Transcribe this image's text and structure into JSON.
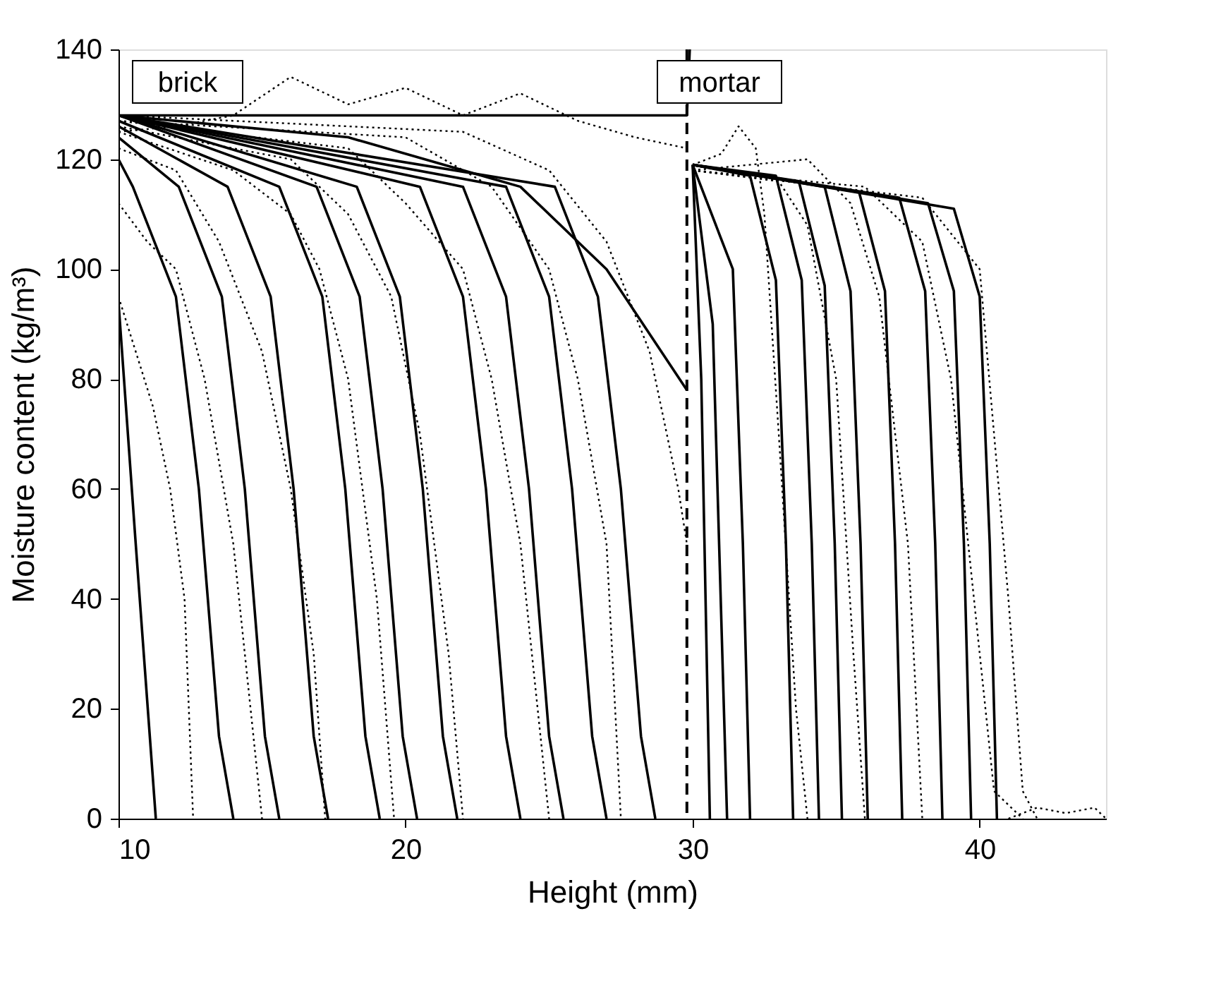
{
  "chart_data": {
    "type": "line",
    "xlabel": "Height (mm)",
    "ylabel": "Moisture content (kg/m³)",
    "xlim": [
      10,
      44.4
    ],
    "xticks": [
      10,
      20,
      30,
      40
    ],
    "ylim": [
      0,
      140
    ],
    "yticks": [
      0,
      20,
      40,
      60,
      80,
      100,
      120,
      140
    ],
    "grid": false,
    "marker": "none",
    "annotations": [
      "brick",
      "mortar"
    ],
    "ref_lines": [
      {
        "axis": "x",
        "value": 29.8,
        "label": null,
        "color": "#000000",
        "line_style": "dashed"
      }
    ],
    "series": [
      {
        "color": "#000000",
        "line_style": "solid",
        "x": [
          10,
          29.8,
          29.9
        ],
        "values": [
          128,
          128,
          140
        ]
      },
      {
        "color": "#000000",
        "line_style": "solid",
        "x": [
          10,
          10.6,
          11.3
        ],
        "values": [
          94,
          50,
          0
        ]
      },
      {
        "color": "#000000",
        "line_style": "solid",
        "x": [
          10,
          10.5,
          12,
          12.8,
          13.5,
          14
        ],
        "values": [
          120,
          115,
          95,
          60,
          15,
          0
        ]
      },
      {
        "color": "#000000",
        "line_style": "solid",
        "x": [
          10,
          12.1,
          13.6,
          14.4,
          15.1,
          15.6
        ],
        "values": [
          124,
          115,
          95,
          60,
          15,
          0
        ]
      },
      {
        "color": "#000000",
        "line_style": "solid",
        "x": [
          10,
          13.8,
          15.3,
          16.1,
          16.8,
          17.3
        ],
        "values": [
          126,
          115,
          95,
          60,
          15,
          0
        ]
      },
      {
        "color": "#000000",
        "line_style": "solid",
        "x": [
          10,
          15.6,
          17.1,
          17.9,
          18.6,
          19.1
        ],
        "values": [
          127,
          115,
          95,
          60,
          15,
          0
        ]
      },
      {
        "color": "#000000",
        "line_style": "solid",
        "x": [
          10,
          16.9,
          18.4,
          19.2,
          19.9,
          20.4
        ],
        "values": [
          128,
          115,
          95,
          60,
          15,
          0
        ]
      },
      {
        "color": "#000000",
        "line_style": "solid",
        "x": [
          10,
          18.3,
          19.8,
          20.6,
          21.3,
          21.8
        ],
        "values": [
          128,
          115,
          95,
          60,
          15,
          0
        ]
      },
      {
        "color": "#000000",
        "line_style": "solid",
        "x": [
          10,
          20.5,
          22,
          22.8,
          23.5,
          24
        ],
        "values": [
          128,
          115,
          95,
          60,
          15,
          0
        ]
      },
      {
        "color": "#000000",
        "line_style": "solid",
        "x": [
          10,
          22,
          23.5,
          24.3,
          25,
          25.5
        ],
        "values": [
          128,
          115,
          95,
          60,
          15,
          0
        ]
      },
      {
        "color": "#000000",
        "line_style": "solid",
        "x": [
          10,
          23.5,
          25,
          25.8,
          26.5,
          27
        ],
        "values": [
          128,
          115,
          95,
          60,
          15,
          0
        ]
      },
      {
        "color": "#000000",
        "line_style": "solid",
        "x": [
          10,
          25.2,
          26.7,
          27.5,
          28.2,
          28.7
        ],
        "values": [
          128,
          115,
          95,
          60,
          15,
          0
        ]
      },
      {
        "color": "#000000",
        "line_style": "solid",
        "x": [
          10,
          18,
          24,
          27,
          29.8
        ],
        "values": [
          128,
          124,
          115,
          100,
          78
        ]
      },
      {
        "color": "#000000",
        "line_style": "solid",
        "x": [
          30,
          30.3,
          30.45,
          30.6
        ],
        "values": [
          119,
          80,
          40,
          0
        ]
      },
      {
        "color": "#000000",
        "line_style": "solid",
        "x": [
          30,
          30.7,
          30.95,
          31.2
        ],
        "values": [
          119,
          90,
          45,
          0
        ]
      },
      {
        "color": "#000000",
        "line_style": "solid",
        "x": [
          30,
          31.4,
          31.75,
          32
        ],
        "values": [
          119,
          100,
          50,
          0
        ]
      },
      {
        "color": "#000000",
        "line_style": "solid",
        "x": [
          30,
          32,
          32.9,
          33.25,
          33.5
        ],
        "values": [
          119,
          117,
          98,
          50,
          0
        ]
      },
      {
        "color": "#000000",
        "line_style": "solid",
        "x": [
          30,
          32.9,
          33.8,
          34.15,
          34.4
        ],
        "values": [
          119,
          117,
          98,
          50,
          0
        ]
      },
      {
        "color": "#000000",
        "line_style": "solid",
        "x": [
          30,
          33.7,
          34.6,
          34.95,
          35.2
        ],
        "values": [
          119,
          116,
          97,
          50,
          0
        ]
      },
      {
        "color": "#000000",
        "line_style": "solid",
        "x": [
          30,
          34.6,
          35.5,
          35.85,
          36.1
        ],
        "values": [
          119,
          115,
          96,
          50,
          0
        ]
      },
      {
        "color": "#000000",
        "line_style": "solid",
        "x": [
          30,
          35.8,
          36.7,
          37.05,
          37.3
        ],
        "values": [
          119,
          114,
          96,
          50,
          0
        ]
      },
      {
        "color": "#000000",
        "line_style": "solid",
        "x": [
          30,
          37.2,
          38.1,
          38.45,
          38.7
        ],
        "values": [
          119,
          113,
          96,
          50,
          0
        ]
      },
      {
        "color": "#000000",
        "line_style": "solid",
        "x": [
          30,
          38.2,
          39.1,
          39.45,
          39.7
        ],
        "values": [
          119,
          112,
          96,
          50,
          0
        ]
      },
      {
        "color": "#000000",
        "line_style": "solid",
        "x": [
          30,
          39.1,
          40,
          40.35,
          40.6
        ],
        "values": [
          119,
          111,
          95,
          50,
          0
        ]
      },
      {
        "color": "#000000",
        "line_style": "dotted",
        "x": [
          10,
          10.6,
          11.2,
          11.8,
          12.3,
          12.6
        ],
        "values": [
          95,
          85,
          75,
          60,
          40,
          0
        ]
      },
      {
        "color": "#000000",
        "line_style": "dotted",
        "x": [
          10,
          11,
          12,
          13,
          14,
          14.6,
          15
        ],
        "values": [
          112,
          105,
          100,
          80,
          50,
          20,
          0
        ]
      },
      {
        "color": "#000000",
        "line_style": "dotted",
        "x": [
          10,
          12,
          13.5,
          15,
          16,
          16.8,
          17.2
        ],
        "values": [
          122,
          118,
          105,
          85,
          60,
          30,
          0
        ]
      },
      {
        "color": "#000000",
        "line_style": "dotted",
        "x": [
          10,
          14,
          16,
          17,
          18,
          19,
          19.6
        ],
        "values": [
          125,
          118,
          110,
          100,
          80,
          40,
          0
        ]
      },
      {
        "color": "#000000",
        "line_style": "dotted",
        "x": [
          10,
          16,
          18,
          19.5,
          20.5,
          21.5,
          22
        ],
        "values": [
          126,
          120,
          110,
          95,
          70,
          30,
          0
        ]
      },
      {
        "color": "#000000",
        "line_style": "dotted",
        "x": [
          10,
          18,
          20,
          22,
          23,
          24,
          24.6,
          25
        ],
        "values": [
          127,
          122,
          112,
          100,
          80,
          50,
          20,
          0
        ]
      },
      {
        "color": "#000000",
        "line_style": "dotted",
        "x": [
          10,
          20,
          23,
          25,
          26,
          27,
          27.5
        ],
        "values": [
          127,
          124,
          115,
          100,
          80,
          50,
          0
        ]
      },
      {
        "color": "#000000",
        "line_style": "dotted",
        "x": [
          10,
          22,
          25,
          27,
          28.5,
          29.5,
          29.8
        ],
        "values": [
          128,
          125,
          118,
          105,
          85,
          60,
          50
        ]
      },
      {
        "color": "#000000",
        "line_style": "dotted",
        "x": [
          10,
          12,
          14,
          16,
          18,
          20,
          22,
          24,
          26,
          28,
          29.8
        ],
        "values": [
          125,
          126,
          128,
          135,
          130,
          133,
          128,
          132,
          127,
          124,
          122
        ]
      },
      {
        "color": "#000000",
        "line_style": "dotted",
        "x": [
          30,
          31,
          31.6,
          32.2,
          32.5,
          33,
          33.6,
          34
        ],
        "values": [
          119,
          121,
          126,
          122,
          110,
          70,
          20,
          0
        ]
      },
      {
        "color": "#000000",
        "line_style": "dotted",
        "x": [
          30,
          33,
          34,
          35,
          35.6,
          36
        ],
        "values": [
          118,
          116,
          108,
          80,
          30,
          0
        ]
      },
      {
        "color": "#000000",
        "line_style": "dotted",
        "x": [
          30,
          34,
          35.5,
          36.5,
          37.5,
          38
        ],
        "values": [
          118,
          120,
          112,
          95,
          50,
          0
        ]
      },
      {
        "color": "#000000",
        "line_style": "dotted",
        "x": [
          30,
          36,
          38,
          39,
          40,
          40.5,
          41.5
        ],
        "values": [
          118,
          115,
          105,
          80,
          30,
          5,
          0
        ]
      },
      {
        "color": "#000000",
        "line_style": "dotted",
        "x": [
          30,
          38,
          40,
          41,
          41.5,
          42
        ],
        "values": [
          118,
          113,
          100,
          40,
          5,
          0
        ]
      },
      {
        "color": "#000000",
        "line_style": "dotted",
        "x": [
          41,
          42,
          43,
          44,
          44.4
        ],
        "values": [
          0,
          2,
          1,
          2,
          0
        ]
      }
    ]
  }
}
